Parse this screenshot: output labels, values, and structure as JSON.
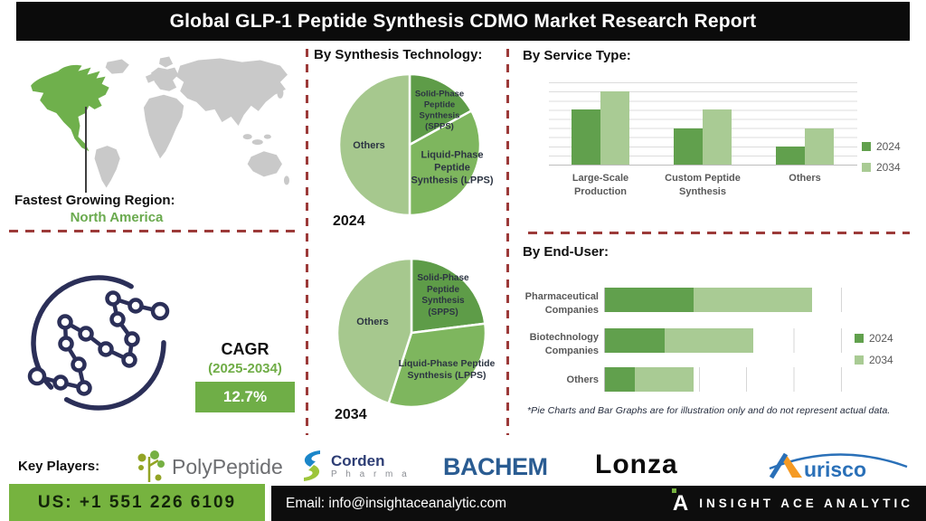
{
  "title": "Global GLP-1 Peptide Synthesis CDMO Market  Research Report",
  "region": {
    "label": "Fastest Growing Region:",
    "value": "North America"
  },
  "cagr": {
    "label": "CAGR",
    "period": "(2025-2034)",
    "value": "12.7%"
  },
  "sections": {
    "synthesis": "By Synthesis Technology:",
    "service": "By Service Type:",
    "enduser": "By End-User:"
  },
  "footnote": "*Pie Charts and Bar Graphs are for illustration only and do not represent actual data.",
  "key_players": {
    "label": "Key Players:",
    "polypeptide": "PolyPeptide",
    "corden_name": "Corden",
    "corden_sub": "P h a r m a",
    "bachem": "BACHEM",
    "lonza": "Lonza",
    "aurisco": "urisco"
  },
  "footer": {
    "phone": "US: +1 551 226 6109",
    "email": "Email: info@insightaceanalytic.com",
    "brand_initial": "A",
    "brand": "INSIGHT ACE ANALYTIC"
  },
  "colors": {
    "accent_green": "#70ad47",
    "dark_green": "#61a04d",
    "mid_green": "#7eb65e",
    "light_green": "#a9cb94",
    "dashed_red": "#9c3a39",
    "navy": "#2b2f58"
  },
  "chart_data": [
    {
      "type": "pie",
      "title": "By Synthesis Technology:",
      "year": "2024",
      "slices": [
        {
          "label": "Solid-Phase Peptide Synthesis (SPPS)",
          "value": 17,
          "color": "#5e9c48"
        },
        {
          "label": "Liquid-Phase Peptide Synthesis (LPPS)",
          "value": 33,
          "color": "#7eb65e"
        },
        {
          "label": "Others",
          "value": 50,
          "color": "#a6c88e"
        }
      ],
      "note": "illustrative proportions, clockwise from 12 o'clock"
    },
    {
      "type": "pie",
      "title": "By Synthesis Technology:",
      "year": "2034",
      "slices": [
        {
          "label": "Solid-Phase Peptide Synthesis (SPPS)",
          "value": 23,
          "color": "#5e9c48"
        },
        {
          "label": "Liquid-Phase Peptide Synthesis (LPPS)",
          "value": 32,
          "color": "#7eb65e"
        },
        {
          "label": "Others",
          "value": 45,
          "color": "#a6c88e"
        }
      ],
      "note": "illustrative proportions, clockwise from 12 o'clock"
    },
    {
      "type": "bar",
      "title": "By Service Type:",
      "categories": [
        "Large-Scale Production",
        "Custom Peptide Synthesis",
        "Others"
      ],
      "series": [
        {
          "name": "2024",
          "color": "#61a04d",
          "values": [
            6,
            4,
            2
          ]
        },
        {
          "name": "2034",
          "color": "#a9cb94",
          "values": [
            8,
            6,
            4
          ]
        }
      ],
      "ylim": [
        0,
        9
      ],
      "grid": true,
      "legend_position": "right"
    },
    {
      "type": "stacked-hbar",
      "title": "By End-User:",
      "categories": [
        "Pharmaceutical Companies",
        "Biotechnology Companies",
        "Others"
      ],
      "series": [
        {
          "name": "2024",
          "color": "#61a04d",
          "values": [
            30,
            20,
            10
          ]
        },
        {
          "name": "2034",
          "color": "#a9cb94",
          "values": [
            40,
            30,
            20
          ]
        }
      ],
      "xlim": [
        0,
        80
      ],
      "grid": true,
      "legend_position": "right"
    }
  ]
}
